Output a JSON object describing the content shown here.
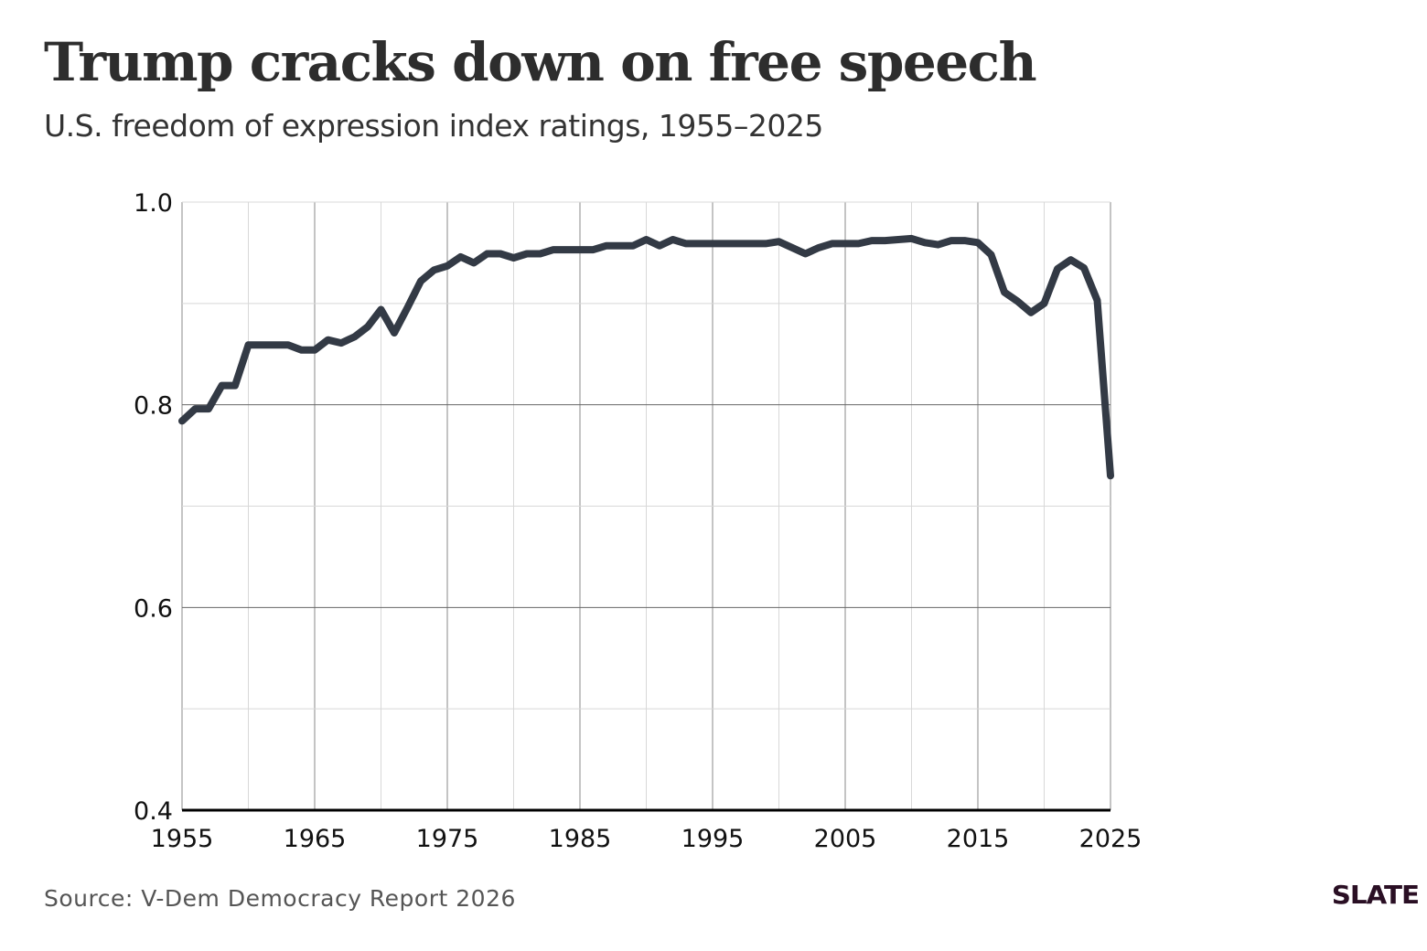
{
  "header": {
    "title": "Trump cracks down on free speech",
    "subtitle": "U.S. freedom of expression index ratings, 1955–2025"
  },
  "footer": {
    "source": "Source: V-Dem Democracy Report 2026",
    "logo": "SLATE"
  },
  "colors": {
    "line": "#333a45",
    "logo": "#2a0f24"
  },
  "chart_data": {
    "type": "line",
    "title": "Trump cracks down on free speech",
    "subtitle": "U.S. freedom of expression index ratings, 1955–2025",
    "xlabel": "",
    "ylabel": "",
    "xlim": [
      1955,
      2025
    ],
    "ylim": [
      0.4,
      1.0
    ],
    "x_ticks": [
      "1955",
      "1965",
      "1975",
      "1985",
      "1995",
      "2005",
      "2015",
      "2025"
    ],
    "y_ticks": [
      "0.4",
      "0.6",
      "0.8",
      "1.0"
    ],
    "grid": true,
    "x": [
      1955,
      1956,
      1957,
      1958,
      1959,
      1960,
      1961,
      1962,
      1963,
      1964,
      1965,
      1966,
      1967,
      1968,
      1969,
      1970,
      1971,
      1972,
      1973,
      1974,
      1975,
      1976,
      1977,
      1978,
      1979,
      1980,
      1981,
      1982,
      1983,
      1984,
      1985,
      1986,
      1987,
      1988,
      1989,
      1990,
      1991,
      1992,
      1993,
      1994,
      1995,
      1996,
      1997,
      1998,
      1999,
      2000,
      2001,
      2002,
      2003,
      2004,
      2005,
      2006,
      2007,
      2008,
      2009,
      2010,
      2011,
      2012,
      2013,
      2014,
      2015,
      2016,
      2017,
      2018,
      2019,
      2020,
      2021,
      2022,
      2023,
      2024,
      2025
    ],
    "y": [
      0.784,
      0.796,
      0.796,
      0.819,
      0.819,
      0.859,
      0.859,
      0.859,
      0.859,
      0.854,
      0.854,
      0.864,
      0.861,
      0.867,
      0.877,
      0.894,
      0.871,
      0.896,
      0.922,
      0.933,
      0.937,
      0.946,
      0.94,
      0.949,
      0.949,
      0.945,
      0.949,
      0.949,
      0.953,
      0.953,
      0.953,
      0.953,
      0.957,
      0.957,
      0.957,
      0.963,
      0.957,
      0.963,
      0.959,
      0.959,
      0.959,
      0.959,
      0.959,
      0.959,
      0.959,
      0.961,
      0.955,
      0.949,
      0.955,
      0.959,
      0.959,
      0.959,
      0.962,
      0.962,
      0.963,
      0.964,
      0.96,
      0.958,
      0.962,
      0.962,
      0.96,
      0.948,
      0.911,
      0.902,
      0.891,
      0.9,
      0.934,
      0.943,
      0.935,
      0.903,
      0.73
    ]
  }
}
